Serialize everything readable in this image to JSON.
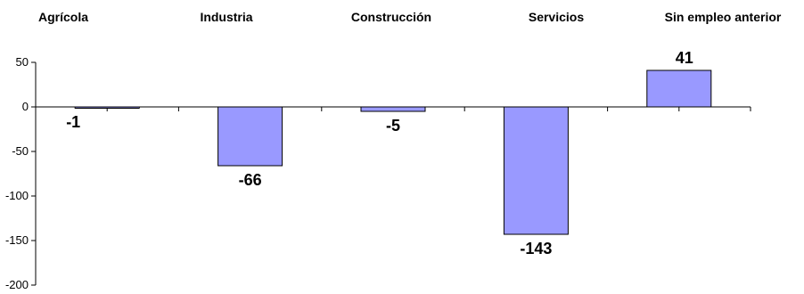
{
  "chart_data": {
    "type": "bar",
    "categories": [
      "Agrícola",
      "Industria",
      "Construcción",
      "Servicios",
      "Sin empleo anterior"
    ],
    "values": [
      -1,
      -66,
      -5,
      -143,
      41
    ],
    "data_labels": [
      "-1",
      "-66",
      "-5",
      "-143",
      "41"
    ],
    "ylim": [
      -200,
      50
    ],
    "yticks": [
      50,
      0,
      -50,
      -100,
      -150,
      -200
    ],
    "ytick_labels": [
      "50",
      "0",
      "-50",
      "-100",
      "-150",
      "-200"
    ],
    "category_labels_position": "top",
    "bar_color": "#9999ff",
    "bar_edge_color": "#000000",
    "grid": false,
    "legend": "none",
    "title": "",
    "xlabel": "",
    "ylabel": ""
  }
}
